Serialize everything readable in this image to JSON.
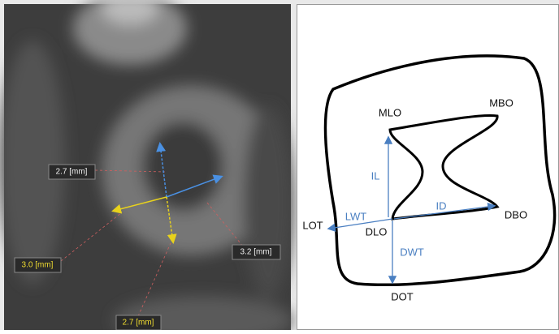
{
  "ct_image": {
    "measurements": [
      "2.7 [mm]",
      "3.2 [mm]",
      "3.0 [mm]",
      "2.7 [mm]"
    ]
  },
  "diagram": {
    "points": [
      "MLO",
      "MBO",
      "DBO",
      "DLO",
      "LOT",
      "DOT"
    ],
    "lengths": [
      "IL",
      "ID",
      "LWT",
      "DWT"
    ]
  }
}
